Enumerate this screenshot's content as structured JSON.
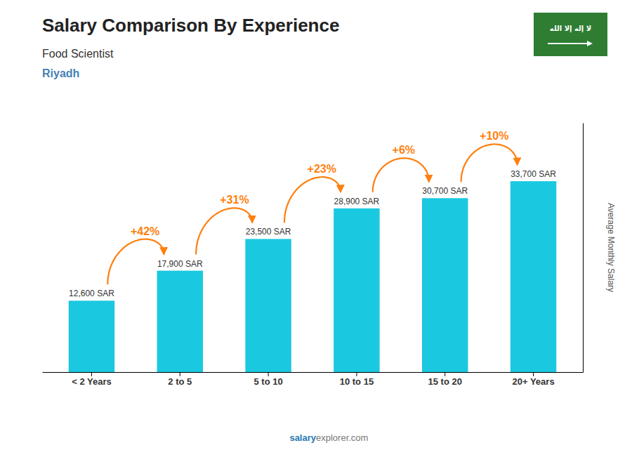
{
  "chart_data": {
    "type": "bar",
    "title": "Salary Comparison By Experience",
    "subtitle": "Food Scientist",
    "ylabel": "Average Monthly Salary",
    "annotations": [
      "Riyadh",
      "salary",
      "explorer.com",
      "لا إله إلا الله"
    ],
    "categories": [
      "< 2 Years",
      "2 to 5",
      "5 to 10",
      "10 to 15",
      "15 to 20",
      "20+ Years"
    ],
    "values": [
      12600,
      17900,
      23500,
      28900,
      30700,
      33700
    ],
    "value_labels": [
      "12,600 SAR",
      "17,900 SAR",
      "23,500 SAR",
      "28,900 SAR",
      "30,700 SAR",
      "33,700 SAR"
    ],
    "changes": [
      42,
      31,
      23,
      6,
      10
    ],
    "change_labels": [
      "+42%",
      "+31%",
      "+23%",
      "+6%",
      "+10%"
    ],
    "color": "#1ac8e0",
    "ylim": [
      0,
      44000
    ],
    "grid": false,
    "data_labels": true,
    "tick_labels": "x"
  }
}
